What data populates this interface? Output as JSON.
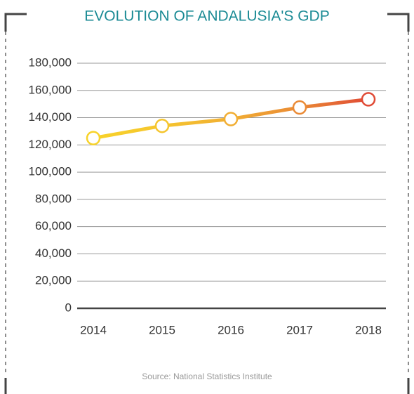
{
  "chart_data": {
    "type": "line",
    "title": "EVOLUTION OF ANDALUSIA'S GDP",
    "source": "Source: National Statistics Institute",
    "categories": [
      "2014",
      "2015",
      "2016",
      "2017",
      "2018"
    ],
    "series": [
      {
        "name": "GDP",
        "values": [
          125000,
          134000,
          139000,
          147500,
          153500
        ],
        "colors": [
          "#f8d32a",
          "#f5c52e",
          "#f1ae33",
          "#ea8a35",
          "#e04a35"
        ]
      }
    ],
    "ylim": [
      0,
      180000
    ],
    "yticks": [
      0,
      {
        "value": 20000,
        "label": "20,000"
      },
      {
        "value": 40000,
        "label": "40,000"
      },
      {
        "value": 60000,
        "label": "60,000"
      },
      {
        "value": 80000,
        "label": "80,000"
      },
      {
        "value": 100000,
        "label": "100,000"
      },
      {
        "value": 120000,
        "label": "120,000"
      },
      {
        "value": 140000,
        "label": "140,000"
      },
      {
        "value": 160000,
        "label": "160,000"
      },
      {
        "value": 180000,
        "label": "180,000"
      }
    ],
    "grid": true
  }
}
